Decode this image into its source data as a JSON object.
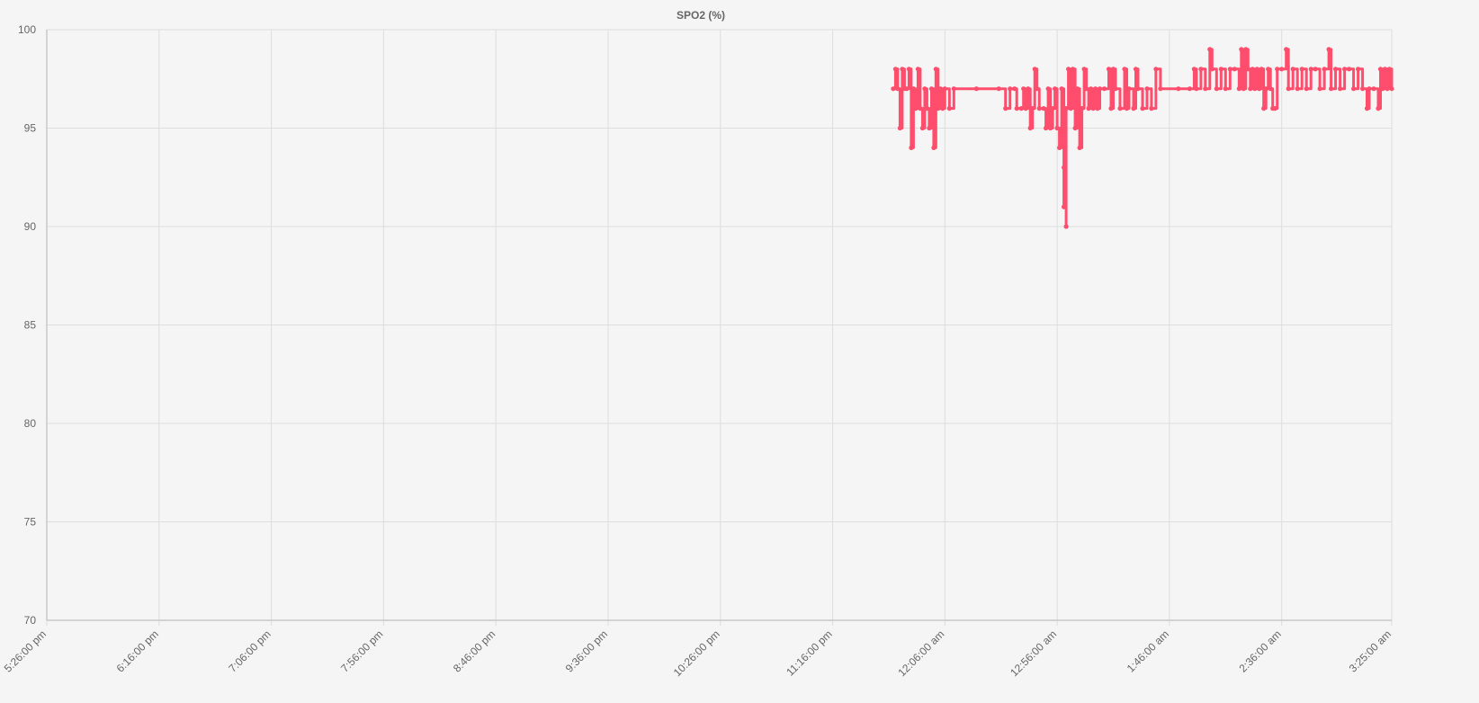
{
  "chart_data": {
    "type": "line",
    "title": "SPO2 (%)",
    "xlabel": "",
    "ylabel": "",
    "ylim": [
      70,
      100
    ],
    "yticks": [
      70,
      75,
      80,
      85,
      90,
      95,
      100
    ],
    "x_tick_labels": [
      "5:26:00 pm",
      "6:16:00 pm",
      "7:06:00 pm",
      "7:56:00 pm",
      "8:46:00 pm",
      "9:36:00 pm",
      "10:26:00 pm",
      "11:16:00 pm",
      "12:06:00 am",
      "12:56:00 am",
      "1:46:00 am",
      "2:36:00 am",
      "3:25:00 am"
    ],
    "grid": true,
    "legend": "none",
    "series": [
      {
        "color": "#ff4d6d",
        "points": [
          [
            "11:43 pm",
            97
          ],
          [
            "11:44 pm",
            98
          ],
          [
            "11:45 pm",
            97
          ],
          [
            "11:46 pm",
            95
          ],
          [
            "11:47 pm",
            98
          ],
          [
            "11:48 pm",
            97
          ],
          [
            "11:49 pm",
            97
          ],
          [
            "11:50 pm",
            98
          ],
          [
            "11:51 pm",
            94
          ],
          [
            "11:52 pm",
            97
          ],
          [
            "11:53 pm",
            96
          ],
          [
            "11:54 pm",
            98
          ],
          [
            "11:55 pm",
            96
          ],
          [
            "11:56 pm",
            95
          ],
          [
            "11:57 pm",
            97
          ],
          [
            "11:58 pm",
            96
          ],
          [
            "11:59 pm",
            95
          ],
          [
            "12:00 am",
            97
          ],
          [
            "12:01 am",
            94
          ],
          [
            "12:02 am",
            98
          ],
          [
            "12:03 am",
            96
          ],
          [
            "12:04 am",
            97
          ],
          [
            "12:05 am",
            96
          ],
          [
            "12:06 am",
            97
          ],
          [
            "12:08 am",
            96
          ],
          [
            "12:10 am",
            97
          ],
          [
            "12:20 am",
            97
          ],
          [
            "12:30 am",
            97
          ],
          [
            "12:33 am",
            96
          ],
          [
            "12:35 am",
            97
          ],
          [
            "12:37 am",
            97
          ],
          [
            "12:38 am",
            96
          ],
          [
            "12:40 am",
            96
          ],
          [
            "12:41 am",
            97
          ],
          [
            "12:42 am",
            96
          ],
          [
            "12:43 am",
            97
          ],
          [
            "12:44 am",
            95
          ],
          [
            "12:45 am",
            96
          ],
          [
            "12:46 am",
            98
          ],
          [
            "12:47 am",
            97
          ],
          [
            "12:48 am",
            96
          ],
          [
            "12:50 am",
            96
          ],
          [
            "12:51 am",
            95
          ],
          [
            "12:52 am",
            97
          ],
          [
            "12:53 am",
            95
          ],
          [
            "12:54 am",
            96
          ],
          [
            "12:55 am",
            97
          ],
          [
            "12:56 am",
            95
          ],
          [
            "12:57 am",
            94
          ],
          [
            "12:58 am",
            97
          ],
          [
            "12:59 am",
            93
          ],
          [
            "12:59 am",
            91
          ],
          [
            "1:00 am",
            90
          ],
          [
            "1:00 am",
            96
          ],
          [
            "1:01 am",
            98
          ],
          [
            "1:02 am",
            96
          ],
          [
            "1:03 am",
            98
          ],
          [
            "1:04 am",
            95
          ],
          [
            "1:05 am",
            97
          ],
          [
            "1:06 am",
            94
          ],
          [
            "1:07 am",
            96
          ],
          [
            "1:08 am",
            98
          ],
          [
            "1:09 am",
            97
          ],
          [
            "1:10 am",
            96
          ],
          [
            "1:11 am",
            97
          ],
          [
            "1:12 am",
            96
          ],
          [
            "1:13 am",
            97
          ],
          [
            "1:14 am",
            96
          ],
          [
            "1:15 am",
            97
          ],
          [
            "1:17 am",
            97
          ],
          [
            "1:19 am",
            98
          ],
          [
            "1:20 am",
            96
          ],
          [
            "1:21 am",
            98
          ],
          [
            "1:22 am",
            97
          ],
          [
            "1:24 am",
            96
          ],
          [
            "1:26 am",
            98
          ],
          [
            "1:27 am",
            96
          ],
          [
            "1:28 am",
            97
          ],
          [
            "1:30 am",
            96
          ],
          [
            "1:31 am",
            98
          ],
          [
            "1:32 am",
            97
          ],
          [
            "1:34 am",
            96
          ],
          [
            "1:36 am",
            97
          ],
          [
            "1:38 am",
            96
          ],
          [
            "1:40 am",
            98
          ],
          [
            "1:42 am",
            97
          ],
          [
            "1:50 am",
            97
          ],
          [
            "1:55 am",
            97
          ],
          [
            "1:57 am",
            98
          ],
          [
            "1:58 am",
            97
          ],
          [
            "2:00 am",
            98
          ],
          [
            "2:02 am",
            97
          ],
          [
            "2:04 am",
            99
          ],
          [
            "2:05 am",
            98
          ],
          [
            "2:07 am",
            97
          ],
          [
            "2:09 am",
            98
          ],
          [
            "2:11 am",
            97
          ],
          [
            "2:13 am",
            98
          ],
          [
            "2:15 am",
            98
          ],
          [
            "2:17 am",
            97
          ],
          [
            "2:18 am",
            99
          ],
          [
            "2:19 am",
            97
          ],
          [
            "2:20 am",
            99
          ],
          [
            "2:21 am",
            98
          ],
          [
            "2:22 am",
            97
          ],
          [
            "2:23 am",
            98
          ],
          [
            "2:24 am",
            97
          ],
          [
            "2:25 am",
            98
          ],
          [
            "2:26 am",
            97
          ],
          [
            "2:27 am",
            98
          ],
          [
            "2:28 am",
            96
          ],
          [
            "2:29 am",
            97
          ],
          [
            "2:30 am",
            98
          ],
          [
            "2:31 am",
            97
          ],
          [
            "2:32 am",
            96
          ],
          [
            "2:33 am",
            96
          ],
          [
            "2:34 am",
            98
          ],
          [
            "2:36 am",
            98
          ],
          [
            "2:38 am",
            99
          ],
          [
            "2:39 am",
            97
          ],
          [
            "2:41 am",
            98
          ],
          [
            "2:43 am",
            97
          ],
          [
            "2:45 am",
            98
          ],
          [
            "2:47 am",
            97
          ],
          [
            "2:49 am",
            98
          ],
          [
            "2:51 am",
            98
          ],
          [
            "2:53 am",
            97
          ],
          [
            "2:55 am",
            98
          ],
          [
            "2:57 am",
            99
          ],
          [
            "2:58 am",
            97
          ],
          [
            "3:00 am",
            98
          ],
          [
            "3:02 am",
            97
          ],
          [
            "3:04 am",
            98
          ],
          [
            "3:06 am",
            98
          ],
          [
            "3:08 am",
            97
          ],
          [
            "3:10 am",
            98
          ],
          [
            "3:12 am",
            97
          ],
          [
            "3:14 am",
            96
          ],
          [
            "3:15 am",
            97
          ],
          [
            "3:17 am",
            97
          ],
          [
            "3:19 am",
            96
          ],
          [
            "3:20 am",
            98
          ],
          [
            "3:21 am",
            97
          ],
          [
            "3:22 am",
            98
          ],
          [
            "3:23 am",
            97
          ],
          [
            "3:24 am",
            98
          ],
          [
            "3:25 am",
            97
          ]
        ]
      }
    ]
  }
}
